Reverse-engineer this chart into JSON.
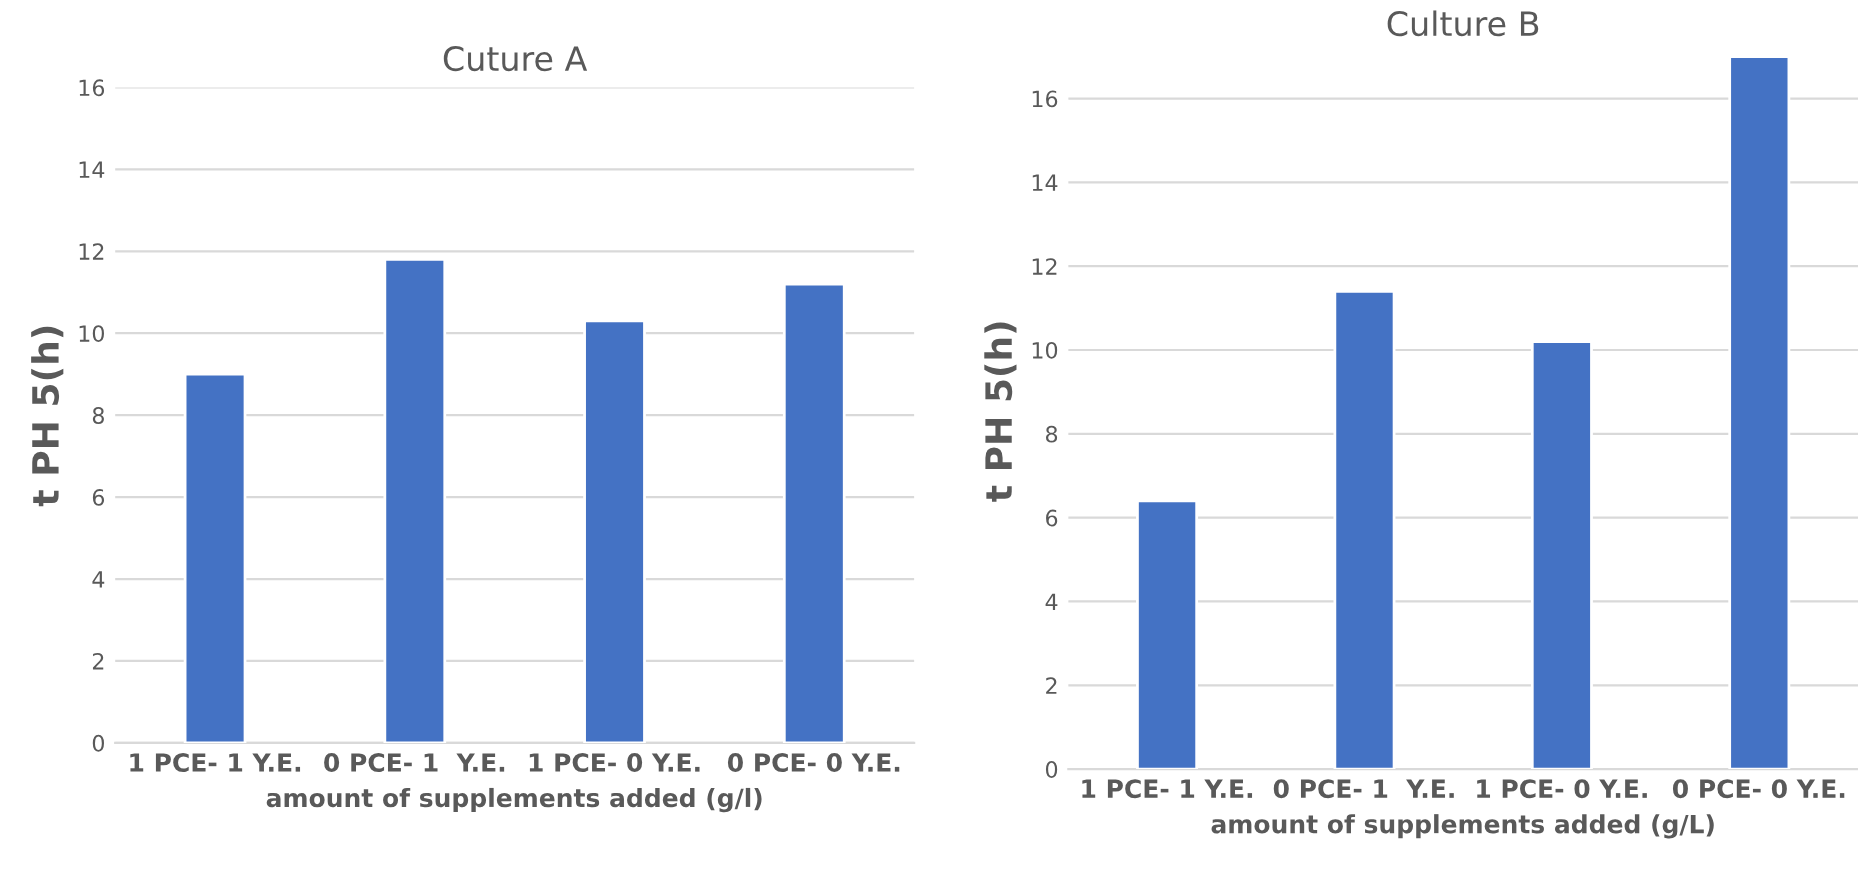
{
  "chart_data": [
    {
      "type": "bar",
      "title": "Cuture A",
      "xlabel": "amount of supplements added (g/l)",
      "ylabel": "t PH 5(h)",
      "categories": [
        "1 PCE- 1 Y.E.",
        "0 PCE- 1  Y.E.",
        "1 PCE- 0 Y.E.",
        "0 PCE- 0 Y.E."
      ],
      "values": [
        9.0,
        11.8,
        10.3,
        11.2
      ],
      "color": "#4472c4",
      "ylim": [
        0,
        16
      ],
      "yticks": [
        0,
        2,
        4,
        6,
        8,
        10,
        12,
        14,
        16
      ],
      "grid": "y"
    },
    {
      "type": "bar",
      "title": "Culture B",
      "xlabel": "amount of supplements added (g/L)",
      "ylabel": "t PH 5(h)",
      "categories": [
        "1 PCE- 1 Y.E.",
        "0 PCE- 1  Y.E.",
        "1 PCE- 0 Y.E.",
        "0 PCE- 0 Y.E."
      ],
      "values": [
        6.4,
        11.4,
        10.2,
        17.0
      ],
      "color": "#4472c4",
      "ylim": [
        0,
        17.1
      ],
      "yticks": [
        0,
        2,
        4,
        6,
        8,
        10,
        12,
        14,
        16
      ],
      "grid": "y"
    }
  ]
}
